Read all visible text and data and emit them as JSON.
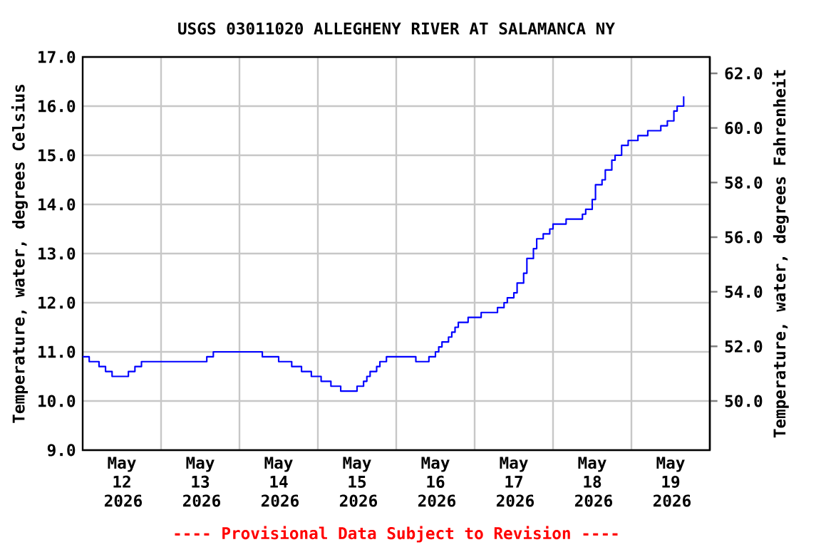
{
  "chart_data": {
    "type": "step",
    "title": "USGS 03011020 ALLEGHENY RIVER AT SALAMANCA NY",
    "ylabel": "Temperature, water, degrees Celsius",
    "y2label": "Temperature, water, degrees Fahrenheit",
    "annotations": [
      "---- Provisional Data Subject to Revision ----"
    ],
    "xlim": [
      "2026-05-12T00:00",
      "2026-05-20T00:00"
    ],
    "xticks": [
      {
        "value": "2026-05-12T12:00",
        "label": "May 12 2026"
      },
      {
        "value": "2026-05-13T12:00",
        "label": "May 13 2026"
      },
      {
        "value": "2026-05-14T12:00",
        "label": "May 14 2026"
      },
      {
        "value": "2026-05-15T12:00",
        "label": "May 15 2026"
      },
      {
        "value": "2026-05-16T12:00",
        "label": "May 16 2026"
      },
      {
        "value": "2026-05-17T12:00",
        "label": "May 17 2026"
      },
      {
        "value": "2026-05-18T12:00",
        "label": "May 18 2026"
      },
      {
        "value": "2026-05-19T12:00",
        "label": "May 19 2026"
      },
      {
        "value": "2026-05-13T00:00",
        "label": null
      },
      {
        "value": "2026-05-14T00:00",
        "label": null
      },
      {
        "value": "2026-05-15T00:00",
        "label": null
      },
      {
        "value": "2026-05-16T00:00",
        "label": null
      },
      {
        "value": "2026-05-17T00:00",
        "label": null
      },
      {
        "value": "2026-05-18T00:00",
        "label": null
      },
      {
        "value": "2026-05-19T00:00",
        "label": null
      }
    ],
    "ylim": [
      9.0,
      17.0
    ],
    "yticks": [
      {
        "value": 9,
        "label": "9.0"
      },
      {
        "value": 10,
        "label": "10.0"
      },
      {
        "value": 11,
        "label": "11.0"
      },
      {
        "value": 12,
        "label": "12.0"
      },
      {
        "value": 13,
        "label": "13.0"
      },
      {
        "value": 14,
        "label": "14.0"
      },
      {
        "value": 15,
        "label": "15.0"
      },
      {
        "value": 16,
        "label": "16.0"
      },
      {
        "value": 17,
        "label": "17.0"
      }
    ],
    "y2lim": [
      48.2,
      62.6
    ],
    "y2ticks": [
      {
        "value": 50,
        "label": "50.0"
      },
      {
        "value": 52,
        "label": "52.0"
      },
      {
        "value": 54,
        "label": "54.0"
      },
      {
        "value": 56,
        "label": "56.0"
      },
      {
        "value": 58,
        "label": "58.0"
      },
      {
        "value": 60,
        "label": "60.0"
      },
      {
        "value": 62,
        "label": "62.0"
      }
    ],
    "grid": true,
    "marker": "none",
    "line_style": "solid",
    "x": [
      "2026-05-12T00:00",
      "2026-05-12T02:00",
      "2026-05-12T05:00",
      "2026-05-12T07:00",
      "2026-05-12T09:00",
      "2026-05-12T14:00",
      "2026-05-12T16:00",
      "2026-05-12T18:00",
      "2026-05-13T14:00",
      "2026-05-13T16:00",
      "2026-05-14T07:00",
      "2026-05-14T12:00",
      "2026-05-14T16:00",
      "2026-05-14T19:00",
      "2026-05-14T22:00",
      "2026-05-15T01:00",
      "2026-05-15T04:00",
      "2026-05-15T07:00",
      "2026-05-15T12:00",
      "2026-05-15T14:00",
      "2026-05-15T15:00",
      "2026-05-15T16:00",
      "2026-05-15T18:00",
      "2026-05-15T19:00",
      "2026-05-15T21:00",
      "2026-05-16T06:00",
      "2026-05-16T10:00",
      "2026-05-16T12:00",
      "2026-05-16T13:00",
      "2026-05-16T14:00",
      "2026-05-16T16:00",
      "2026-05-16T17:00",
      "2026-05-16T18:00",
      "2026-05-16T19:00",
      "2026-05-16T22:00",
      "2026-05-17T02:00",
      "2026-05-17T07:00",
      "2026-05-17T09:00",
      "2026-05-17T10:00",
      "2026-05-17T12:00",
      "2026-05-17T13:00",
      "2026-05-17T15:00",
      "2026-05-17T16:00",
      "2026-05-17T18:00",
      "2026-05-17T19:00",
      "2026-05-17T21:00",
      "2026-05-17T23:00",
      "2026-05-18T00:00",
      "2026-05-18T04:00",
      "2026-05-18T09:00",
      "2026-05-18T10:00",
      "2026-05-18T12:00",
      "2026-05-18T13:00",
      "2026-05-18T15:00",
      "2026-05-18T16:00",
      "2026-05-18T18:00",
      "2026-05-18T19:00",
      "2026-05-18T21:00",
      "2026-05-18T23:00",
      "2026-05-19T02:00",
      "2026-05-19T05:00",
      "2026-05-19T09:00",
      "2026-05-19T11:00",
      "2026-05-19T13:00",
      "2026-05-19T14:00",
      "2026-05-19T16:00"
    ],
    "series": [
      {
        "color": "#0000ff",
        "values": [
          10.9,
          10.8,
          10.7,
          10.6,
          10.5,
          10.6,
          10.7,
          10.8,
          10.9,
          11.0,
          10.9,
          10.8,
          10.7,
          10.6,
          10.5,
          10.4,
          10.3,
          10.2,
          10.3,
          10.4,
          10.5,
          10.6,
          10.7,
          10.8,
          10.9,
          10.8,
          10.9,
          11.0,
          11.1,
          11.2,
          11.3,
          11.4,
          11.5,
          11.6,
          11.7,
          11.8,
          11.9,
          12.0,
          12.1,
          12.2,
          12.4,
          12.6,
          12.9,
          13.1,
          13.3,
          13.4,
          13.5,
          13.6,
          13.7,
          13.8,
          13.9,
          14.1,
          14.4,
          14.5,
          14.7,
          14.9,
          15.0,
          15.2,
          15.3,
          15.4,
          15.5,
          15.6,
          15.7,
          15.9,
          16.0,
          16.2
        ]
      }
    ]
  }
}
